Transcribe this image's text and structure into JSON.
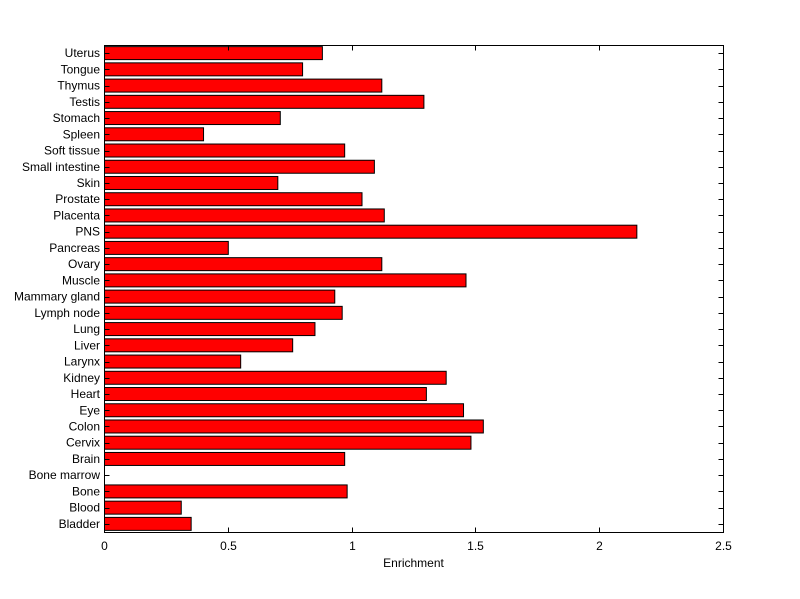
{
  "chart_data": {
    "type": "bar",
    "orientation": "horizontal",
    "title": "",
    "xlabel": "Enrichment",
    "ylabel": "",
    "xlim": [
      0,
      2.5
    ],
    "xticks": [
      {
        "value": 0,
        "label": "0"
      },
      {
        "value": 0.5,
        "label": "0.5"
      },
      {
        "value": 1,
        "label": "1"
      },
      {
        "value": 1.5,
        "label": "1.5"
      },
      {
        "value": 2,
        "label": "2"
      },
      {
        "value": 2.5,
        "label": "2.5"
      }
    ],
    "grid": false,
    "bar_color": "#ff0000",
    "bar_edge_color": "#000000",
    "categories": [
      "Uterus",
      "Tongue",
      "Thymus",
      "Testis",
      "Stomach",
      "Spleen",
      "Soft tissue",
      "Small intestine",
      "Skin",
      "Prostate",
      "Placenta",
      "PNS",
      "Pancreas",
      "Ovary",
      "Muscle",
      "Mammary gland",
      "Lymph node",
      "Lung",
      "Liver",
      "Larynx",
      "Kidney",
      "Heart",
      "Eye",
      "Colon",
      "Cervix",
      "Brain",
      "Bone marrow",
      "Bone",
      "Blood",
      "Bladder"
    ],
    "values": [
      0.88,
      0.8,
      1.12,
      1.29,
      0.71,
      0.4,
      0.97,
      1.09,
      0.7,
      1.04,
      1.13,
      2.15,
      0.5,
      1.12,
      1.46,
      0.93,
      0.96,
      0.85,
      0.76,
      0.55,
      1.38,
      1.3,
      1.45,
      1.53,
      1.48,
      0.97,
      0.0,
      0.98,
      0.31,
      0.35
    ]
  }
}
